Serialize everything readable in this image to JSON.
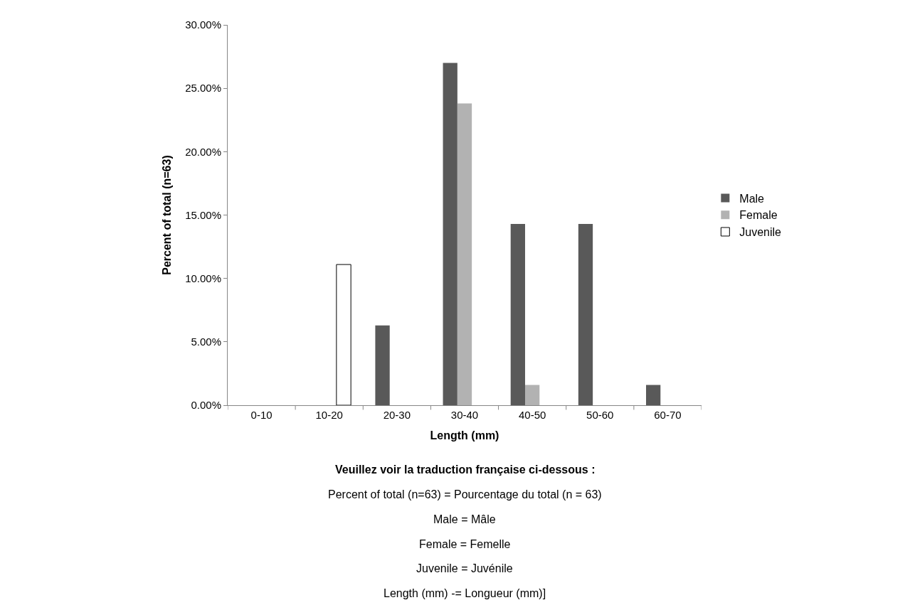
{
  "chart_data": {
    "type": "bar",
    "xlabel": "Length (mm)",
    "ylabel": "Percent of total (n=63)",
    "categories": [
      "0-10",
      "10-20",
      "20-30",
      "30-40",
      "40-50",
      "50-60",
      "60-70"
    ],
    "series": [
      {
        "name": "Male",
        "color": "#595959",
        "values": [
          null,
          null,
          6.3,
          27.0,
          14.3,
          14.3,
          1.6
        ]
      },
      {
        "name": "Female",
        "color": "#b2b2b2",
        "values": [
          null,
          null,
          null,
          23.8,
          1.6,
          null,
          null
        ]
      },
      {
        "name": "Juvenile",
        "color": "#ffffff",
        "values": [
          null,
          11.1,
          null,
          null,
          null,
          null,
          null
        ]
      }
    ],
    "ylim": [
      0,
      30
    ],
    "yticks": [
      {
        "value": 0,
        "label": "0.00%"
      },
      {
        "value": 5,
        "label": "5.00%"
      },
      {
        "value": 10,
        "label": "10.00%"
      },
      {
        "value": 15,
        "label": "15.00%"
      },
      {
        "value": 20,
        "label": "20.00%"
      },
      {
        "value": 25,
        "label": "25.00%"
      },
      {
        "value": 30,
        "label": "30.00%"
      }
    ],
    "legend": "right",
    "annotations": [
      "Veuillez voir la traduction française ci-dessous :",
      "Percent of total (n=63) = Pourcentage du total (n = 63)",
      "Male = Mâle",
      "Female = Femelle",
      "Juvenile = Juvénile",
      "Length (mm) -= Longueur (mm)]"
    ]
  }
}
